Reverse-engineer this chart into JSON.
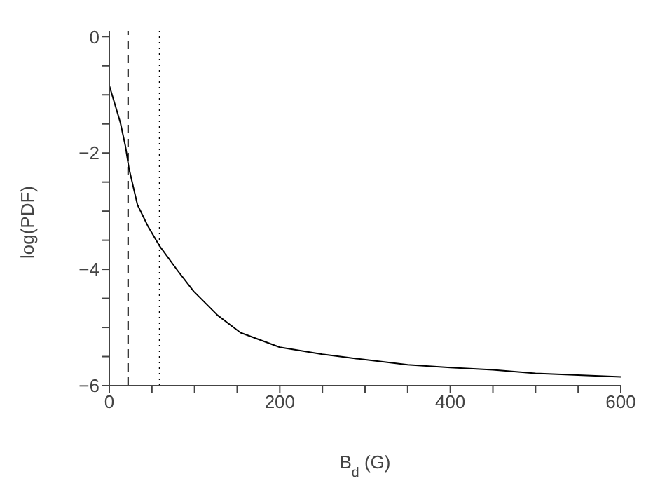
{
  "chart_data": {
    "type": "line",
    "xlabel": "B$_{d}$ (G)",
    "ylabel": "log(PDF)",
    "x": [
      0,
      13,
      19,
      23,
      33,
      45,
      59,
      80,
      99,
      127,
      154,
      200,
      250,
      292,
      350,
      400,
      450,
      500,
      550,
      600
    ],
    "series": [
      {
        "color": "#000000",
        "values": [
          -0.84,
          -1.48,
          -1.89,
          -2.26,
          -2.89,
          -3.25,
          -3.6,
          -4.02,
          -4.38,
          -4.79,
          -5.09,
          -5.34,
          -5.46,
          -5.54,
          -5.64,
          -5.69,
          -5.73,
          -5.79,
          -5.82,
          -5.85
        ]
      }
    ],
    "xlim": [
      0,
      600
    ],
    "ylim": [
      -6,
      0.1
    ],
    "xticks": [
      0,
      {
        "value": 50,
        "label": null
      },
      {
        "value": 100,
        "label": null
      },
      {
        "value": 150,
        "label": null
      },
      200,
      {
        "value": 250,
        "label": null
      },
      {
        "value": 300,
        "label": null
      },
      {
        "value": 350,
        "label": null
      },
      400,
      {
        "value": 450,
        "label": null
      },
      {
        "value": 500,
        "label": null
      },
      {
        "value": 550,
        "label": null
      },
      600
    ],
    "yticks": [
      -6,
      {
        "value": -5.5,
        "label": null
      },
      {
        "value": -5,
        "label": null
      },
      {
        "value": -4.5,
        "label": null
      },
      -4,
      {
        "value": -3.5,
        "label": null
      },
      {
        "value": -3,
        "label": null
      },
      {
        "value": -2.5,
        "label": null
      },
      -2,
      {
        "value": -1.5,
        "label": null
      },
      {
        "value": -1,
        "label": null
      },
      {
        "value": -0.5,
        "label": null
      },
      0
    ],
    "ref_lines": [
      {
        "axis": "x",
        "value": 22,
        "line_style": "dashed"
      },
      {
        "axis": "x",
        "value": 59,
        "line_style": "dotted"
      }
    ],
    "grid": false,
    "legend": false,
    "marker": "none",
    "line_style": "solid"
  }
}
